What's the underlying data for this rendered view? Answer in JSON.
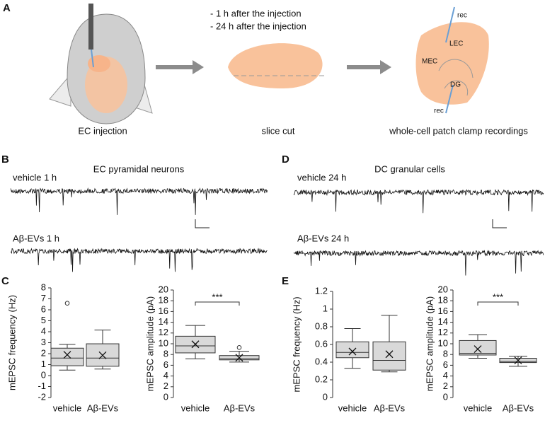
{
  "figure": {
    "panel_a": "A",
    "panel_b": "B",
    "panel_c": "C",
    "panel_d": "D",
    "panel_e": "E",
    "timepoint_1": "-    1 h after the injection",
    "timepoint_2": "-    24 h after the injection",
    "rec_top": "rec",
    "lec": "LEC",
    "mec": "MEC",
    "dg": "DG",
    "rec_bottom": "rec",
    "step_1": "EC injection",
    "step_2": "slice cut",
    "step_3": "whole-cell patch clamp recordings",
    "b_title": "EC pyramidal neurons",
    "b_trace_1": "vehicle 1 h",
    "b_trace_2": "Aβ-EVs 1 h",
    "d_title": "DC granular cells",
    "d_trace_1": "vehicle 24 h",
    "d_trace_2": "Aβ-EVs 24 h"
  },
  "chart_data": [
    {
      "type": "box",
      "ylabel": "mEPSC frequency (Hz)",
      "categories": [
        "vehicle",
        "Aβ-EVs"
      ],
      "boxes": [
        {
          "min": 0.5,
          "q1": 0.9,
          "median": 1.6,
          "q3": 2.5,
          "max": 2.85,
          "mean": 1.9,
          "outliers": [
            6.6
          ]
        },
        {
          "min": 0.6,
          "q1": 0.85,
          "median": 1.6,
          "q3": 2.9,
          "max": 4.15,
          "mean": 1.85,
          "outliers": []
        }
      ],
      "ylim": [
        -2,
        8
      ],
      "yticks": [
        -2,
        -1,
        0,
        1,
        2,
        3,
        4,
        5,
        6,
        7,
        8
      ],
      "color": "#d9d9d9"
    },
    {
      "type": "box",
      "ylabel": "mEPSC amplitude (pA)",
      "categories": [
        "vehicle",
        "Aβ-EVs"
      ],
      "boxes": [
        {
          "min": 7.2,
          "q1": 8.3,
          "median": 9.6,
          "q3": 11.4,
          "max": 13.4,
          "mean": 9.9,
          "outliers": []
        },
        {
          "min": 6.6,
          "q1": 7.0,
          "median": 7.2,
          "q3": 7.8,
          "max": 8.6,
          "mean": 7.4,
          "outliers": [
            9.3
          ]
        }
      ],
      "ylim": [
        0,
        20
      ],
      "yticks": [
        0,
        2,
        4,
        6,
        8,
        10,
        12,
        14,
        16,
        18,
        20
      ],
      "color": "#d9d9d9",
      "significance": "***"
    },
    {
      "type": "box",
      "ylabel": "mEPSC frequency (Hz)",
      "categories": [
        "vehicle",
        "Aβ-EVs"
      ],
      "boxes": [
        {
          "min": 0.33,
          "q1": 0.45,
          "median": 0.51,
          "q3": 0.63,
          "max": 0.78,
          "mean": 0.52,
          "outliers": []
        },
        {
          "min": 0.29,
          "q1": 0.31,
          "median": 0.42,
          "q3": 0.63,
          "max": 0.93,
          "mean": 0.49,
          "outliers": []
        }
      ],
      "ylim": [
        0,
        1.2
      ],
      "yticks": [
        0,
        0.2,
        0.4,
        0.6,
        0.8,
        1,
        1.2
      ],
      "color": "#d9d9d9"
    },
    {
      "type": "box",
      "ylabel": "mEPSC amplitude (pA)",
      "categories": [
        "vehicle",
        "Aβ-EVs"
      ],
      "boxes": [
        {
          "min": 7.3,
          "q1": 7.9,
          "median": 8.2,
          "q3": 10.6,
          "max": 11.7,
          "mean": 9.0,
          "outliers": []
        },
        {
          "min": 5.8,
          "q1": 6.5,
          "median": 6.7,
          "q3": 7.3,
          "max": 7.7,
          "mean": 6.9,
          "outliers": []
        }
      ],
      "ylim": [
        0,
        20
      ],
      "yticks": [
        0,
        2,
        4,
        6,
        8,
        10,
        12,
        14,
        16,
        18,
        20
      ],
      "color": "#d9d9d9",
      "significance": "***"
    }
  ]
}
